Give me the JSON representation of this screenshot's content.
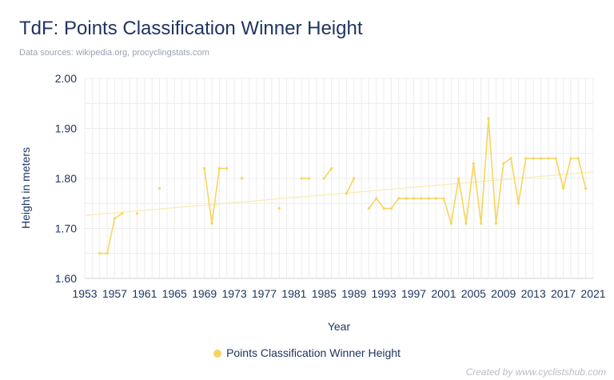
{
  "header": {
    "title": "TdF: Points Classification Winner Height",
    "subtitle": "Data sources: wikipedia.org, procyclingstats.com"
  },
  "footer": {
    "credit": "Created by www.cyclistshub.com"
  },
  "chart_data": {
    "type": "line",
    "title": "TdF: Points Classification Winner Height",
    "xlabel": "Year",
    "ylabel": "Height in meters",
    "xlim": [
      1953,
      2021
    ],
    "ylim": [
      1.6,
      2.0
    ],
    "x_ticks": [
      1953,
      1957,
      1961,
      1965,
      1969,
      1973,
      1977,
      1981,
      1985,
      1989,
      1993,
      1997,
      2001,
      2005,
      2009,
      2013,
      2017,
      2021
    ],
    "y_ticks": [
      "1.60",
      "1.70",
      "1.80",
      "1.90",
      "2.00"
    ],
    "grid": true,
    "legend_position": "bottom",
    "colors": {
      "series": "#f7d55c",
      "trend": "#fbeab0",
      "grid": "#ececec",
      "text": "#1f3561"
    },
    "series": [
      {
        "name": "Points Classification Winner Height",
        "segments": [
          [
            [
              1955,
              1.65
            ],
            [
              1956,
              1.65
            ],
            [
              1957,
              1.72
            ],
            [
              1958,
              1.73
            ]
          ],
          [
            [
              1960,
              1.73
            ]
          ],
          [
            [
              1963,
              1.78
            ]
          ],
          [
            [
              1969,
              1.82
            ],
            [
              1970,
              1.71
            ],
            [
              1971,
              1.82
            ],
            [
              1972,
              1.82
            ]
          ],
          [
            [
              1974,
              1.8
            ]
          ],
          [
            [
              1979,
              1.74
            ]
          ],
          [
            [
              1982,
              1.8
            ],
            [
              1983,
              1.8
            ]
          ],
          [
            [
              1985,
              1.8
            ],
            [
              1986,
              1.82
            ]
          ],
          [
            [
              1988,
              1.77
            ],
            [
              1989,
              1.8
            ]
          ],
          [
            [
              1991,
              1.74
            ],
            [
              1992,
              1.76
            ],
            [
              1993,
              1.74
            ],
            [
              1994,
              1.74
            ],
            [
              1995,
              1.76
            ],
            [
              1996,
              1.76
            ],
            [
              1997,
              1.76
            ],
            [
              1998,
              1.76
            ],
            [
              1999,
              1.76
            ],
            [
              2000,
              1.76
            ],
            [
              2001,
              1.76
            ],
            [
              2002,
              1.71
            ],
            [
              2003,
              1.8
            ],
            [
              2004,
              1.71
            ],
            [
              2005,
              1.83
            ],
            [
              2006,
              1.71
            ],
            [
              2007,
              1.92
            ],
            [
              2008,
              1.71
            ],
            [
              2009,
              1.83
            ],
            [
              2010,
              1.84
            ],
            [
              2011,
              1.75
            ],
            [
              2012,
              1.84
            ],
            [
              2013,
              1.84
            ],
            [
              2014,
              1.84
            ],
            [
              2015,
              1.84
            ],
            [
              2016,
              1.84
            ],
            [
              2017,
              1.78
            ],
            [
              2018,
              1.84
            ],
            [
              2019,
              1.84
            ],
            [
              2020,
              1.78
            ]
          ]
        ]
      }
    ],
    "trendline": {
      "start": [
        1953,
        1.726
      ],
      "end": [
        2021,
        1.813
      ]
    }
  }
}
